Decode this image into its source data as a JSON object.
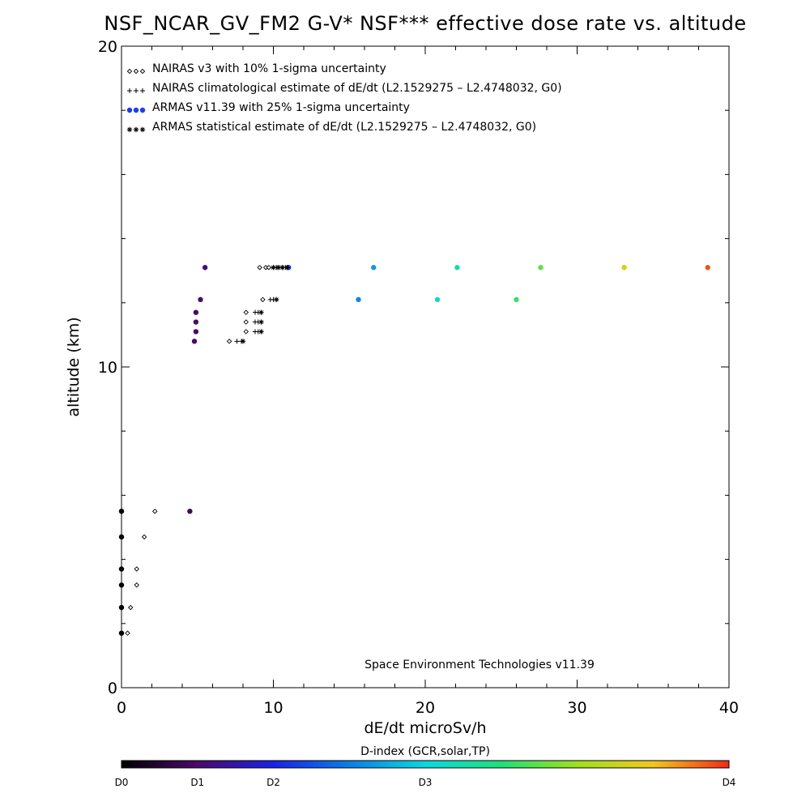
{
  "chart_data": {
    "type": "scatter",
    "title": "NSF_NCAR_GV_FM2 G-V* NSF*** effective dose rate vs. altitude",
    "xlabel": "dE/dt microSv/h",
    "ylabel": "altitude (km)",
    "xlim": [
      0,
      40
    ],
    "ylim": [
      0,
      20
    ],
    "x_ticks": [
      0,
      10,
      20,
      30,
      40
    ],
    "y_ticks": [
      0,
      10,
      20
    ],
    "x_minor_step": 2,
    "y_minor_step": 2,
    "legend_position": "top-left",
    "legend": [
      {
        "symbol": "◇◇◇",
        "label": "NAIRAS v3 with 10% 1-sigma uncertainty"
      },
      {
        "symbol": "+++",
        "label": "NAIRAS climatological estimate of dE/dt (L2.1529275 – L2.4748032, G0)"
      },
      {
        "symbol": "●●●",
        "label": "ARMAS v11.39 with 25% 1-sigma uncertainty"
      },
      {
        "symbol": "***",
        "label": "ARMAS statistical estimate of dE/dt (L2.1529275 – L2.4748032, G0)"
      }
    ],
    "annotation": "Space Environment Technologies v11.39",
    "colorbar": {
      "title": "D-index (GCR,solar,TP)",
      "labels": [
        {
          "text": "D0",
          "value": 0
        },
        {
          "text": "D1",
          "value": 5
        },
        {
          "text": "D2",
          "value": 10
        },
        {
          "text": "D3",
          "value": 20
        },
        {
          "text": "D4",
          "value": 40
        }
      ]
    },
    "series": [
      {
        "name": "NAIRAS v3 with 10% 1-sigma uncertainty",
        "marker": "diamond",
        "points": [
          {
            "x": 0.4,
            "y": 1.7
          },
          {
            "x": 0.6,
            "y": 2.5
          },
          {
            "x": 1.0,
            "y": 3.2
          },
          {
            "x": 1.0,
            "y": 3.7
          },
          {
            "x": 1.5,
            "y": 4.7
          },
          {
            "x": 2.2,
            "y": 5.5
          },
          {
            "x": 7.1,
            "y": 10.8
          },
          {
            "x": 8.2,
            "y": 11.1
          },
          {
            "x": 8.2,
            "y": 11.4
          },
          {
            "x": 8.2,
            "y": 11.7
          },
          {
            "x": 9.3,
            "y": 12.1
          },
          {
            "x": 9.1,
            "y": 13.1
          },
          {
            "x": 9.5,
            "y": 13.1
          },
          {
            "x": 9.7,
            "y": 13.1
          }
        ]
      },
      {
        "name": "NAIRAS climatological estimate of dE/dt (L2.1529275 – L2.4748032, G0)",
        "marker": "plus",
        "points": [
          {
            "x": 7.6,
            "y": 10.8
          },
          {
            "x": 7.9,
            "y": 10.8
          },
          {
            "x": 8.8,
            "y": 11.1
          },
          {
            "x": 9.0,
            "y": 11.1
          },
          {
            "x": 8.8,
            "y": 11.4
          },
          {
            "x": 9.0,
            "y": 11.4
          },
          {
            "x": 8.8,
            "y": 11.7
          },
          {
            "x": 9.0,
            "y": 11.7
          },
          {
            "x": 9.8,
            "y": 12.1
          },
          {
            "x": 10.0,
            "y": 12.1
          },
          {
            "x": 10.0,
            "y": 13.1
          },
          {
            "x": 10.2,
            "y": 13.1
          },
          {
            "x": 10.4,
            "y": 13.1
          },
          {
            "x": 10.6,
            "y": 13.1
          },
          {
            "x": 10.8,
            "y": 13.1
          }
        ]
      },
      {
        "name": "ARMAS v11.39 with 25% 1-sigma uncertainty",
        "marker": "filled-circle",
        "points": [
          {
            "x": 0.0,
            "y": 1.7
          },
          {
            "x": 0.0,
            "y": 2.5
          },
          {
            "x": 0.0,
            "y": 3.2
          },
          {
            "x": 0.0,
            "y": 3.7
          },
          {
            "x": 0.0,
            "y": 4.7
          },
          {
            "x": 0.0,
            "y": 5.5
          },
          {
            "x": 4.5,
            "y": 5.5
          },
          {
            "x": 4.8,
            "y": 10.8
          },
          {
            "x": 4.9,
            "y": 11.1
          },
          {
            "x": 4.9,
            "y": 11.4
          },
          {
            "x": 4.9,
            "y": 11.7
          },
          {
            "x": 5.2,
            "y": 12.1
          },
          {
            "x": 5.5,
            "y": 13.1
          },
          {
            "x": 11.0,
            "y": 13.1
          },
          {
            "x": 15.6,
            "y": 12.1
          },
          {
            "x": 20.8,
            "y": 12.1
          },
          {
            "x": 26.0,
            "y": 12.1
          },
          {
            "x": 16.6,
            "y": 13.1
          },
          {
            "x": 22.1,
            "y": 13.1
          },
          {
            "x": 27.6,
            "y": 13.1
          },
          {
            "x": 33.1,
            "y": 13.1
          },
          {
            "x": 38.6,
            "y": 13.1
          }
        ]
      },
      {
        "name": "ARMAS statistical estimate of dE/dt (L2.1529275 – L2.4748032, G0)",
        "marker": "asterisk",
        "points": [
          {
            "x": 8.0,
            "y": 10.8
          },
          {
            "x": 9.2,
            "y": 11.1
          },
          {
            "x": 9.2,
            "y": 11.4
          },
          {
            "x": 9.2,
            "y": 11.7
          },
          {
            "x": 10.2,
            "y": 12.1
          },
          {
            "x": 10.0,
            "y": 13.1
          },
          {
            "x": 10.3,
            "y": 13.1
          },
          {
            "x": 10.6,
            "y": 13.1
          },
          {
            "x": 10.9,
            "y": 13.1
          }
        ]
      }
    ]
  }
}
